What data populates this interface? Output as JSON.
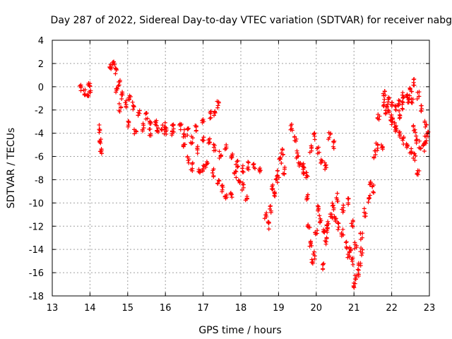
{
  "chart_data": {
    "type": "scatter",
    "title": "Day 287 of 2022, Sidereal Day-to-day VTEC variation (SDTVAR) for receiver nabg",
    "xlabel": "GPS time / hours",
    "ylabel": "SDTVAR / TECUs",
    "xlim": [
      13,
      23
    ],
    "ylim": [
      -18,
      4
    ],
    "xticks": [
      "13",
      "14",
      "15",
      "16",
      "17",
      "18",
      "19",
      "20",
      "21",
      "22",
      "23"
    ],
    "yticks": [
      "-18",
      "-16",
      "-14",
      "-12",
      "-10",
      "-8",
      "-6",
      "-4",
      "-2",
      "0",
      "2",
      "4"
    ],
    "grid": true,
    "marker": "+",
    "colors": {
      "series": "#ff0000",
      "grid": "#a0a0a0",
      "axis": "#000000"
    },
    "series": [
      {
        "name": "SDTVAR",
        "anchors": [
          [
            13.75,
            -0.2
          ],
          [
            13.85,
            -0.5
          ],
          [
            13.95,
            -0.7
          ],
          [
            13.97,
            0.3
          ],
          [
            14.0,
            -0.2
          ],
          [
            14.25,
            -3.6
          ],
          [
            14.27,
            -4.5
          ],
          [
            14.3,
            -5.6
          ],
          [
            14.55,
            1.6
          ],
          [
            14.62,
            1.9
          ],
          [
            14.7,
            1.3
          ],
          [
            14.78,
            0.2
          ],
          [
            14.85,
            -0.7
          ],
          [
            14.95,
            -1.5
          ],
          [
            15.05,
            -1.0
          ],
          [
            15.15,
            -1.6
          ],
          [
            15.3,
            -2.2
          ],
          [
            15.5,
            -2.6
          ],
          [
            15.6,
            -3.2
          ],
          [
            15.75,
            -3.0
          ],
          [
            15.9,
            -3.6
          ],
          [
            16.0,
            -3.4
          ],
          [
            16.2,
            -3.6
          ],
          [
            16.4,
            -3.4
          ],
          [
            16.6,
            -3.9
          ],
          [
            16.8,
            -3.6
          ],
          [
            17.0,
            -2.8
          ],
          [
            17.2,
            -2.4
          ],
          [
            17.3,
            -2.2
          ],
          [
            17.4,
            -1.6
          ],
          [
            14.7,
            -0.3
          ],
          [
            14.8,
            -1.8
          ],
          [
            15.0,
            -3.2
          ],
          [
            15.2,
            -3.8
          ],
          [
            15.4,
            -3.5
          ],
          [
            15.6,
            -3.9
          ],
          [
            15.8,
            -3.6
          ],
          [
            16.0,
            -3.8
          ],
          [
            16.2,
            -4.0
          ],
          [
            16.5,
            -4.0
          ],
          [
            16.7,
            -4.6
          ],
          [
            16.85,
            -5.4
          ],
          [
            17.0,
            -4.6
          ],
          [
            17.15,
            -4.8
          ],
          [
            17.3,
            -5.2
          ],
          [
            17.45,
            -5.8
          ],
          [
            17.6,
            -5.3
          ],
          [
            17.75,
            -5.8
          ],
          [
            17.9,
            -6.6
          ],
          [
            18.05,
            -7.0
          ],
          [
            18.2,
            -6.8
          ],
          [
            18.35,
            -6.9
          ],
          [
            18.5,
            -7.0
          ],
          [
            16.5,
            -5.2
          ],
          [
            16.6,
            -6.3
          ],
          [
            16.7,
            -6.9
          ],
          [
            16.9,
            -7.2
          ],
          [
            17.0,
            -7.0
          ],
          [
            17.1,
            -6.8
          ],
          [
            17.25,
            -7.4
          ],
          [
            17.4,
            -8.2
          ],
          [
            17.5,
            -8.8
          ],
          [
            17.6,
            -9.6
          ],
          [
            17.75,
            -9.2
          ],
          [
            17.85,
            -7.5
          ],
          [
            17.95,
            -8.0
          ],
          [
            18.05,
            -8.6
          ],
          [
            18.15,
            -9.5
          ],
          [
            18.65,
            -11.0
          ],
          [
            18.72,
            -11.9
          ],
          [
            18.8,
            -10.5
          ],
          [
            18.85,
            -8.6
          ],
          [
            18.9,
            -9.2
          ],
          [
            18.95,
            -8.0
          ],
          [
            19.0,
            -7.5
          ],
          [
            19.05,
            -6.3
          ],
          [
            19.1,
            -5.6
          ],
          [
            19.15,
            -7.2
          ],
          [
            19.35,
            -3.4
          ],
          [
            19.45,
            -4.5
          ],
          [
            19.5,
            -5.8
          ],
          [
            19.55,
            -6.5
          ],
          [
            19.65,
            -6.9
          ],
          [
            19.75,
            -7.5
          ],
          [
            19.85,
            -5.4
          ],
          [
            19.95,
            -4.2
          ],
          [
            20.05,
            -5.5
          ],
          [
            20.15,
            -6.3
          ],
          [
            20.25,
            -6.8
          ],
          [
            20.35,
            -4.2
          ],
          [
            20.45,
            -5.0
          ],
          [
            19.65,
            -7.2
          ],
          [
            19.75,
            -9.5
          ],
          [
            19.8,
            -12.2
          ],
          [
            19.85,
            -13.4
          ],
          [
            19.9,
            -15.2
          ],
          [
            19.95,
            -14.5
          ],
          [
            20.0,
            -12.6
          ],
          [
            20.05,
            -10.5
          ],
          [
            20.1,
            -11.4
          ],
          [
            20.2,
            -12.5
          ],
          [
            20.3,
            -11.8
          ],
          [
            20.4,
            -11.2
          ],
          [
            20.5,
            -11.4
          ],
          [
            20.6,
            -12.0
          ],
          [
            20.7,
            -12.6
          ],
          [
            20.8,
            -13.6
          ],
          [
            20.85,
            -14.5
          ],
          [
            20.9,
            -14.0
          ],
          [
            20.95,
            -15.0
          ],
          [
            21.0,
            -17.0
          ],
          [
            21.05,
            -16.5
          ],
          [
            21.1,
            -16.0
          ],
          [
            21.15,
            -15.2
          ],
          [
            21.2,
            -14.2
          ],
          [
            20.2,
            -15.4
          ],
          [
            20.25,
            -13.2
          ],
          [
            20.3,
            -12.2
          ],
          [
            20.45,
            -10.3
          ],
          [
            20.55,
            -9.5
          ],
          [
            20.7,
            -10.5
          ],
          [
            20.85,
            -9.8
          ],
          [
            20.95,
            -11.8
          ],
          [
            21.05,
            -13.6
          ],
          [
            21.2,
            -12.8
          ],
          [
            21.3,
            -10.8
          ],
          [
            21.4,
            -9.6
          ],
          [
            21.45,
            -8.2
          ],
          [
            21.5,
            -8.8
          ],
          [
            21.55,
            -5.8
          ],
          [
            21.6,
            -5.2
          ],
          [
            21.65,
            -2.7
          ],
          [
            21.75,
            -5.1
          ],
          [
            21.8,
            -1.4
          ],
          [
            21.9,
            -2.0
          ],
          [
            22.0,
            -2.7
          ],
          [
            22.1,
            -3.5
          ],
          [
            22.2,
            -4.0
          ],
          [
            22.3,
            -4.6
          ],
          [
            22.4,
            -5.2
          ],
          [
            22.5,
            -5.5
          ],
          [
            22.6,
            -6.0
          ],
          [
            22.7,
            -7.4
          ],
          [
            21.8,
            -0.6
          ],
          [
            21.9,
            -1.2
          ],
          [
            22.0,
            -1.5
          ],
          [
            22.1,
            -1.9
          ],
          [
            22.2,
            -1.3
          ],
          [
            22.3,
            -0.8
          ],
          [
            22.4,
            -0.6
          ],
          [
            22.5,
            -0.3
          ],
          [
            22.6,
            0.4
          ],
          [
            22.7,
            -0.7
          ],
          [
            22.8,
            -1.8
          ],
          [
            22.9,
            -3.2
          ],
          [
            22.6,
            -3.6
          ],
          [
            22.65,
            -4.5
          ],
          [
            22.75,
            -5.0
          ],
          [
            22.85,
            -5.2
          ],
          [
            22.9,
            -4.6
          ],
          [
            22.95,
            -4.0
          ],
          [
            21.85,
            -2.0
          ],
          [
            22.0,
            -3.0
          ],
          [
            22.1,
            -3.3
          ],
          [
            22.2,
            -2.4
          ],
          [
            22.3,
            -1.6
          ],
          [
            22.45,
            -1.0
          ],
          [
            22.55,
            -1.3
          ]
        ]
      }
    ]
  }
}
